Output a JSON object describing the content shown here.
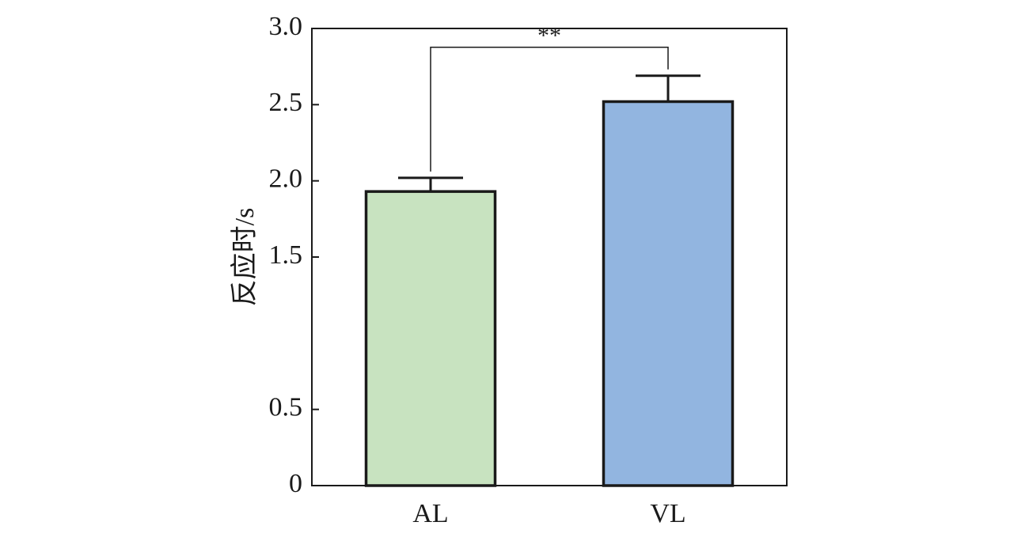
{
  "chart_data": {
    "type": "bar",
    "categories": [
      "AL",
      "VL"
    ],
    "values": [
      1.93,
      2.52
    ],
    "errors": [
      0.09,
      0.17
    ],
    "ylabel": "反应时/s",
    "xlabel": "",
    "ylim": [
      0,
      3.0
    ],
    "yticks": [
      0,
      0.5,
      1.5,
      2.0,
      2.5,
      3.0
    ],
    "ytick_labels": [
      "0",
      "0.5",
      "1.5",
      "2.0",
      "2.5",
      "3.0"
    ],
    "bar_colors": [
      "#c8e3c0",
      "#92b5e0"
    ],
    "significance": {
      "label": "**",
      "between": [
        "AL",
        "VL"
      ]
    },
    "grid": false,
    "legend": "none"
  }
}
